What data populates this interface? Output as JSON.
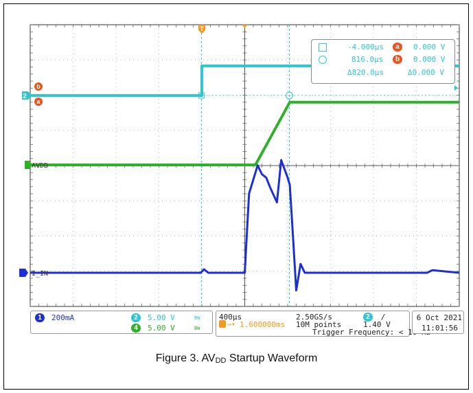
{
  "caption": {
    "prefix": "Figure 3. AV",
    "sub": "DD",
    "suffix": " Startup Waveform"
  },
  "colors": {
    "ch1": "#1b2fd4",
    "ch2": "#2ec6cf",
    "ch4": "#2fb02a",
    "trigger": "#f39a1e",
    "cursor_label": "#e8541d",
    "grid": "#9a9a9a"
  },
  "markers": {
    "trigger_top": "T",
    "ch2_tag": "2",
    "ch4_label": "AVDD",
    "ch1_label": "I_IN",
    "cursor_a": "a",
    "cursor_b": "b"
  },
  "cursor_box": {
    "row1_time": "-4.000µs",
    "row1_tag": "a",
    "row1_val": "0.000 V",
    "row2_time": "816.0µs",
    "row2_tag": "b",
    "row2_val": "0.000 V",
    "delta_time": "Δ820.0µs",
    "delta_val": "Δ0.000 V"
  },
  "channel_panel": {
    "ch1": {
      "num": "1",
      "scale": "200mA"
    },
    "ch2": {
      "num": "2",
      "scale": "5.00 V",
      "bw": "BW"
    },
    "ch4": {
      "num": "4",
      "scale": "5.00 V",
      "bw": "BW"
    }
  },
  "timebase_panel": {
    "timebase": "400µs",
    "sample_rate": "2.50GS/s",
    "trigger_ch": "2",
    "slope": "/",
    "trigger_pos": "1.600000ms",
    "points": "10M points",
    "trigger_level": "1.40 V",
    "trigger_freq": "Trigger Frequency: < 10 Hz"
  },
  "datetime_panel": {
    "date": "6 Oct  2021",
    "time": "11:01:56"
  },
  "chart_data": {
    "type": "line",
    "x_unit": "µs",
    "xlim": [
      -1600,
      2400
    ],
    "x_divisions": 10,
    "time_per_div": "400µs",
    "trigger_time": 0,
    "cursor_times": [
      -4.0,
      816.0
    ],
    "series": [
      {
        "name": "AVDD",
        "channel": 4,
        "unit": "V",
        "scale_per_div": 5.0,
        "x": [
          -1600,
          500,
          820,
          2400
        ],
        "y": [
          0,
          0,
          8.9,
          8.9
        ]
      },
      {
        "name": "2",
        "channel": 2,
        "unit": "V",
        "scale_per_div": 5.0,
        "x": [
          -1600,
          0,
          0,
          2400
        ],
        "y": [
          0,
          0,
          4.2,
          4.2
        ]
      },
      {
        "name": "I_IN",
        "channel": 1,
        "unit": "mA",
        "scale_per_div": 200,
        "x": [
          -1600,
          -10,
          20,
          60,
          400,
          440,
          520,
          560,
          600,
          640,
          700,
          740,
          800,
          820,
          840,
          880,
          920,
          960,
          1000,
          1100,
          2100,
          2150,
          2400
        ],
        "y": [
          0,
          0,
          20,
          0,
          0,
          450,
          610,
          560,
          540,
          480,
          400,
          640,
          540,
          500,
          300,
          -100,
          50,
          0,
          0,
          0,
          0,
          15,
          0
        ]
      }
    ]
  }
}
